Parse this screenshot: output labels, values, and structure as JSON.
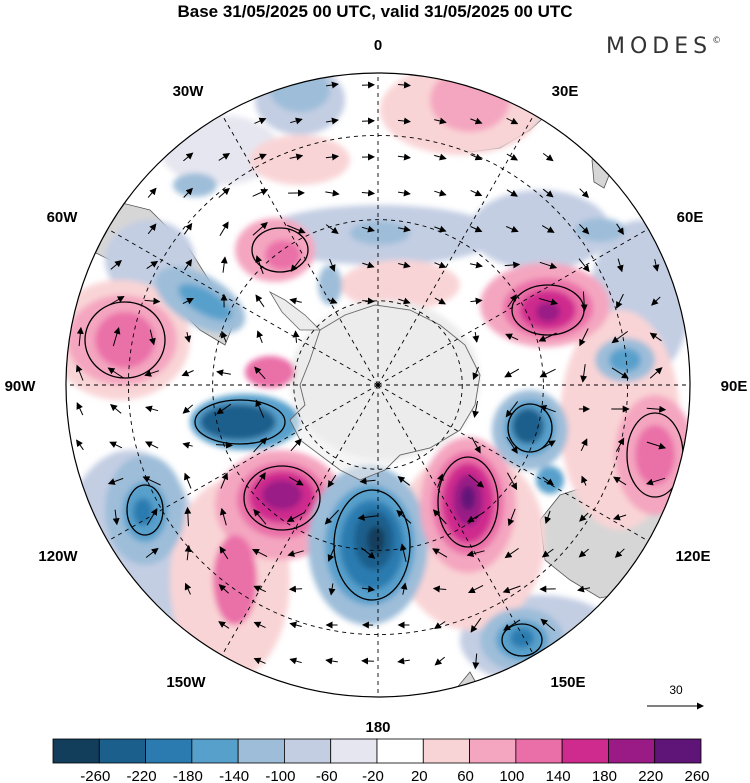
{
  "title": "Base 31/05/2025 00 UTC, valid 31/05/2025 00 UTC",
  "brand": {
    "name": "MODES",
    "mark": "©"
  },
  "longitude_labels": [
    {
      "text": "0",
      "lon": 0
    },
    {
      "text": "30E",
      "lon": 30
    },
    {
      "text": "60E",
      "lon": 60
    },
    {
      "text": "90E",
      "lon": 90
    },
    {
      "text": "120E",
      "lon": 120
    },
    {
      "text": "150E",
      "lon": 150
    },
    {
      "text": "180",
      "lon": 180
    },
    {
      "text": "150W",
      "lon": -150
    },
    {
      "text": "120W",
      "lon": -120
    },
    {
      "text": "90W",
      "lon": -90
    },
    {
      "text": "60W",
      "lon": -60
    },
    {
      "text": "30W",
      "lon": -30
    }
  ],
  "reference_vector": {
    "label": "30"
  },
  "colorbar": {
    "labels": [
      "-260",
      "-220",
      "-180",
      "-140",
      "-100",
      "-60",
      "-20",
      "20",
      "60",
      "100",
      "140",
      "180",
      "220",
      "260"
    ],
    "colors": [
      "#123e5c",
      "#1b5f8c",
      "#2c7bb0",
      "#58a0cc",
      "#9dbdd9",
      "#c3cee3",
      "#e6e6f0",
      "#ffffff",
      "#f9d4d6",
      "#f4a6c0",
      "#ea6fa8",
      "#cf2a8e",
      "#9a1a86",
      "#5f1478"
    ]
  },
  "colors": {
    "land": "#d6d6d6",
    "antarctica": "#ececec",
    "grid": "#000000"
  }
}
